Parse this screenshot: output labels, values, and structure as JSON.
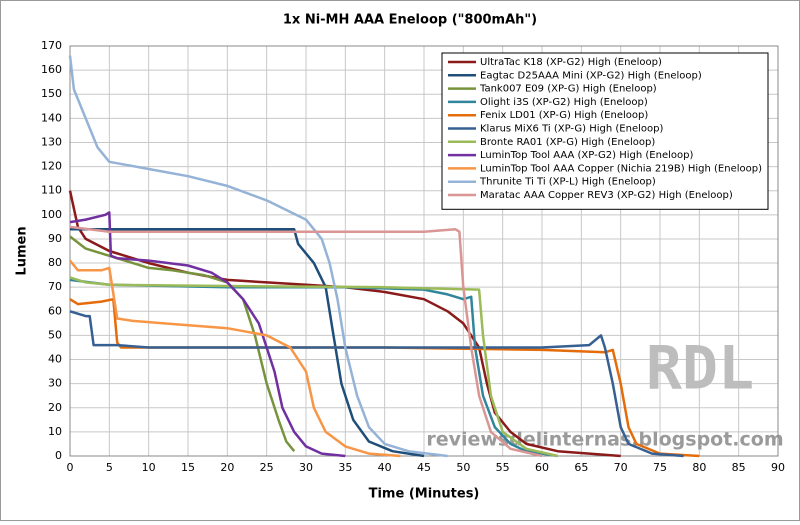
{
  "chart_data": {
    "type": "line",
    "title": "1x Ni-MH AAA Eneloop (\"800mAh\")",
    "xlabel": "Time (Minutes)",
    "ylabel": "Lumen",
    "xlim": [
      0,
      90
    ],
    "ylim": [
      0,
      170
    ],
    "xticks": [
      0,
      5,
      10,
      15,
      20,
      25,
      30,
      35,
      40,
      45,
      50,
      55,
      60,
      65,
      70,
      75,
      80,
      85,
      90
    ],
    "yticks": [
      0,
      10,
      20,
      30,
      40,
      50,
      60,
      70,
      80,
      90,
      100,
      110,
      120,
      130,
      140,
      150,
      160,
      170
    ],
    "grid": true,
    "legend": "upper right",
    "annotations": [
      "RDL",
      "reviewsdelinternas.blogspot.com"
    ],
    "series": [
      {
        "name": "UltraTac K18 (XP-G2) High (Eneloop)",
        "color": "#8b1a1a",
        "x": [
          0,
          1,
          2,
          5,
          10,
          15,
          20,
          25,
          30,
          35,
          40,
          45,
          48,
          50,
          52,
          53,
          54,
          56,
          58,
          62,
          70
        ],
        "values": [
          110,
          95,
          90,
          85,
          80,
          76,
          73,
          72,
          71,
          70,
          68,
          65,
          60,
          55,
          45,
          30,
          18,
          10,
          5,
          2,
          0
        ]
      },
      {
        "name": "Eagtac D25AAA Mini (XP-G2) High (Eneloop)",
        "color": "#1f4e79",
        "x": [
          0,
          10,
          20,
          28.5,
          29,
          31,
          32.5,
          33.5,
          34.5,
          36,
          38,
          41,
          45
        ],
        "values": [
          94,
          94,
          94,
          94,
          88,
          80,
          70,
          50,
          30,
          15,
          6,
          2,
          0
        ]
      },
      {
        "name": "Tank007 E09 (XP-G) High (Eneloop)",
        "color": "#77933c",
        "x": [
          0,
          2,
          5,
          8,
          10,
          13,
          17,
          20,
          22,
          23.5,
          25,
          26.5,
          27.5,
          28.5
        ],
        "values": [
          91,
          86,
          83,
          80,
          78,
          77,
          75,
          72,
          65,
          50,
          30,
          15,
          6,
          2
        ]
      },
      {
        "name": "Olight i3S (XP-G2) High (Eneloop)",
        "color": "#31859c",
        "x": [
          0,
          5,
          20,
          35,
          45,
          48,
          50,
          51,
          51.5,
          52.5,
          54,
          56,
          58,
          62
        ],
        "values": [
          73,
          71,
          70,
          70,
          69,
          67,
          65,
          66,
          45,
          25,
          12,
          5,
          2,
          0
        ]
      },
      {
        "name": "Fenix LD01 (XP-G) High (Eneloop)",
        "color": "#e46c0a",
        "x": [
          0,
          1,
          4,
          5.5,
          6,
          6.5,
          40,
          60,
          68,
          69,
          70,
          71,
          72,
          75,
          80
        ],
        "values": [
          65,
          63,
          64,
          65,
          47,
          45,
          45,
          44,
          43,
          44,
          30,
          12,
          5,
          1,
          0
        ]
      },
      {
        "name": "Klarus MiX6 Ti (XP-G) High (Eneloop)",
        "color": "#366092",
        "x": [
          0,
          2,
          2.5,
          3,
          6,
          10,
          60,
          66,
          67.5,
          68,
          69,
          70,
          71,
          74,
          78
        ],
        "values": [
          60,
          58,
          58,
          46,
          46,
          45,
          45,
          46,
          50,
          45,
          30,
          12,
          5,
          1,
          0
        ]
      },
      {
        "name": "Bronte RA01 (XP-G) High (Eneloop)",
        "color": "#9bbb59",
        "x": [
          0,
          2,
          5,
          20,
          40,
          52,
          52.5,
          53.5,
          55,
          58,
          62
        ],
        "values": [
          74,
          72,
          71,
          70.5,
          70,
          69,
          50,
          25,
          10,
          3,
          0
        ]
      },
      {
        "name": "LuminTop Tool AAA (XP-G2) High (Eneloop)",
        "color": "#7030a0",
        "x": [
          0,
          2,
          4.5,
          5,
          5.2,
          6,
          10,
          15,
          18,
          20,
          22,
          24,
          26,
          27,
          28.5,
          30,
          32,
          35
        ],
        "values": [
          97,
          98,
          100,
          101,
          83,
          82,
          81,
          79,
          76,
          72,
          65,
          55,
          35,
          20,
          10,
          4,
          1,
          0
        ]
      },
      {
        "name": "LuminTop Tool AAA Copper (Nichia 219B) High (Eneloop)",
        "color": "#f79646",
        "x": [
          0,
          1,
          4,
          5,
          6,
          8,
          12,
          20,
          25,
          28,
          30,
          31,
          32.5,
          35,
          38,
          42
        ],
        "values": [
          81,
          77,
          77,
          78,
          57,
          56,
          55,
          53,
          50,
          45,
          35,
          20,
          10,
          4,
          1,
          0
        ]
      },
      {
        "name": "Thrunite Ti Ti (XP-L) High (Eneloop)",
        "color": "#95b3d7",
        "x": [
          0,
          0.5,
          2,
          3.5,
          5,
          10,
          15,
          20,
          25,
          30,
          32,
          33,
          34,
          35,
          36.5,
          38,
          40,
          43,
          48
        ],
        "values": [
          166,
          152,
          140,
          128,
          122,
          119,
          116,
          112,
          106,
          98,
          90,
          80,
          65,
          45,
          25,
          12,
          5,
          2,
          0
        ]
      },
      {
        "name": "Maratac AAA Copper REV3 (XP-G2) High (Eneloop)",
        "color": "#d99694",
        "x": [
          0,
          5,
          30,
          45,
          49,
          49.5,
          50,
          51,
          52,
          53.5,
          56,
          60
        ],
        "values": [
          95,
          93,
          93,
          93,
          94,
          93,
          70,
          45,
          25,
          10,
          3,
          0
        ]
      }
    ]
  }
}
